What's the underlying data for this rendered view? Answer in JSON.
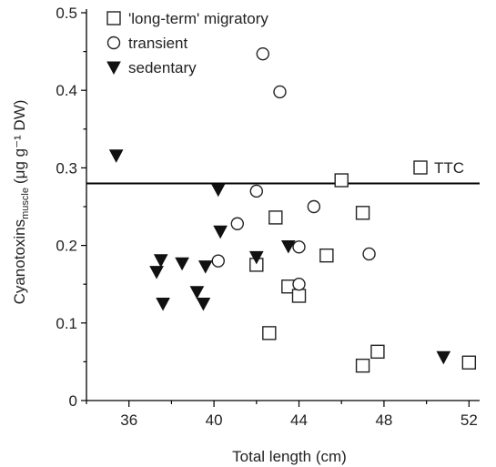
{
  "chart_data": {
    "type": "scatter",
    "xlabel": "Total length (cm)",
    "ylabel_main": "Cyanotoxins",
    "ylabel_sub": "muscle",
    "ylabel_units": "(μg g⁻¹ DW)",
    "xlim": [
      34,
      52.5
    ],
    "ylim": [
      0,
      0.5
    ],
    "x_ticks": [
      "36",
      "40",
      "44",
      "48",
      "52"
    ],
    "x_tick_values": [
      36,
      40,
      44,
      48,
      52
    ],
    "x_minor_tick_values": [
      34,
      38,
      42,
      46,
      50
    ],
    "y_ticks": [
      "0",
      "0.1",
      "0.2",
      "0.3",
      "0.4",
      "0.5"
    ],
    "y_tick_values": [
      0,
      0.1,
      0.2,
      0.3,
      0.4,
      0.5
    ],
    "y_minor_tick_values": [
      0.05,
      0.15,
      0.25,
      0.35,
      0.45
    ],
    "reference_line": {
      "label": "TTC",
      "y": 0.28
    },
    "legend_position": "top-left",
    "series": [
      {
        "name": "'long-term' migratory",
        "marker": "open-square",
        "points": [
          {
            "x": 42.0,
            "y": 0.175
          },
          {
            "x": 42.6,
            "y": 0.087
          },
          {
            "x": 42.9,
            "y": 0.236
          },
          {
            "x": 43.5,
            "y": 0.147
          },
          {
            "x": 44.0,
            "y": 0.135
          },
          {
            "x": 45.3,
            "y": 0.187
          },
          {
            "x": 46.0,
            "y": 0.284
          },
          {
            "x": 47.0,
            "y": 0.242
          },
          {
            "x": 47.0,
            "y": 0.045
          },
          {
            "x": 47.7,
            "y": 0.063
          },
          {
            "x": 52.0,
            "y": 0.049
          }
        ]
      },
      {
        "name": "transient",
        "marker": "open-circle",
        "points": [
          {
            "x": 40.2,
            "y": 0.18
          },
          {
            "x": 41.1,
            "y": 0.228
          },
          {
            "x": 42.0,
            "y": 0.27
          },
          {
            "x": 42.3,
            "y": 0.447
          },
          {
            "x": 43.1,
            "y": 0.398
          },
          {
            "x": 44.0,
            "y": 0.198
          },
          {
            "x": 44.0,
            "y": 0.15
          },
          {
            "x": 44.7,
            "y": 0.25
          },
          {
            "x": 47.3,
            "y": 0.189
          }
        ]
      },
      {
        "name": "sedentary",
        "marker": "filled-triangle-down",
        "points": [
          {
            "x": 35.4,
            "y": 0.316
          },
          {
            "x": 37.3,
            "y": 0.166
          },
          {
            "x": 37.5,
            "y": 0.181
          },
          {
            "x": 37.6,
            "y": 0.125
          },
          {
            "x": 38.5,
            "y": 0.177
          },
          {
            "x": 39.2,
            "y": 0.14
          },
          {
            "x": 39.5,
            "y": 0.125
          },
          {
            "x": 39.6,
            "y": 0.173
          },
          {
            "x": 40.2,
            "y": 0.272
          },
          {
            "x": 40.3,
            "y": 0.218
          },
          {
            "x": 42.0,
            "y": 0.185
          },
          {
            "x": 43.5,
            "y": 0.199
          },
          {
            "x": 50.8,
            "y": 0.056
          }
        ]
      }
    ]
  }
}
